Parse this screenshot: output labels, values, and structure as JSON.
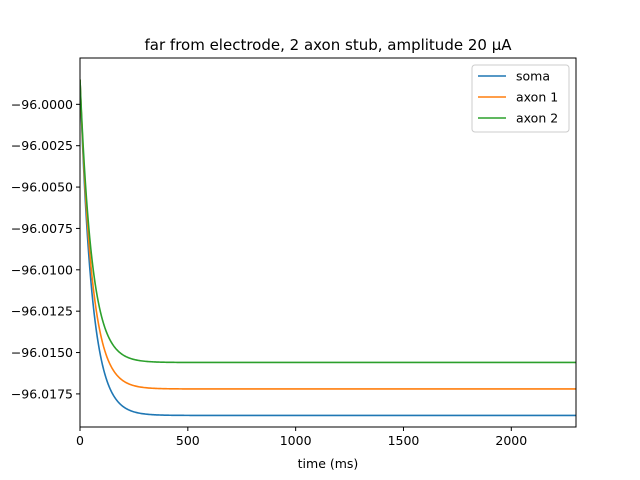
{
  "chart_data": {
    "type": "line",
    "title": "far from electrode, 2 axon stub, amplitude 20 µA",
    "xlabel": "time (ms)",
    "ylabel": "",
    "xlim": [
      0,
      2300
    ],
    "ylim": [
      -96.0195,
      -95.9972
    ],
    "xticks": [
      0,
      500,
      1000,
      1500,
      2000
    ],
    "xtick_labels": [
      "0",
      "500",
      "1000",
      "1500",
      "2000"
    ],
    "yticks": [
      -96.0,
      -96.0025,
      -96.005,
      -96.0075,
      -96.01,
      -96.0125,
      -96.015,
      -96.0175
    ],
    "ytick_labels": [
      "−96.0000",
      "−96.0025",
      "−96.0050",
      "−96.0075",
      "−96.0100",
      "−96.0125",
      "−96.0150",
      "−96.0175"
    ],
    "grid": false,
    "legend_position": "top-right",
    "series": [
      {
        "name": "soma",
        "color": "#1f77b4",
        "start": -95.9985,
        "steady": -96.0188,
        "tau_ms": 55
      },
      {
        "name": "axon 1",
        "color": "#ff7f0e",
        "start": -95.9985,
        "steady": -96.0172,
        "tau_ms": 55
      },
      {
        "name": "axon 2",
        "color": "#2ca02c",
        "start": -95.9985,
        "steady": -96.0156,
        "tau_ms": 55
      }
    ]
  }
}
